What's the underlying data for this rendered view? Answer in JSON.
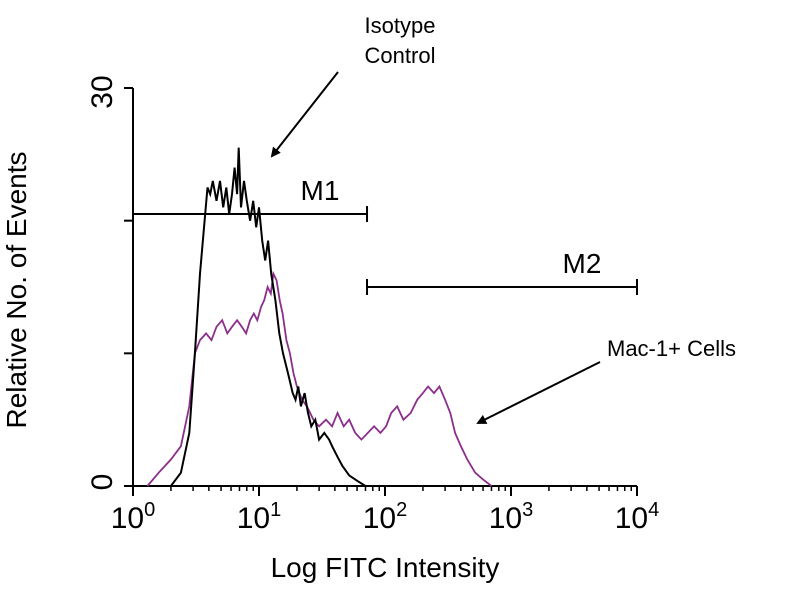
{
  "chart_data": {
    "type": "line",
    "title": "",
    "xlabel": "Log FITC Intensity",
    "ylabel": "Relative No. of Events",
    "x_scale": "log",
    "xlim": [
      1,
      10000
    ],
    "ylim": [
      0,
      30
    ],
    "grid": false,
    "x_tick_labels": [
      {
        "value": 1,
        "base": "10",
        "exp": "0"
      },
      {
        "value": 10,
        "base": "10",
        "exp": "1"
      },
      {
        "value": 100,
        "base": "10",
        "exp": "2"
      },
      {
        "value": 1000,
        "base": "10",
        "exp": "3"
      },
      {
        "value": 10000,
        "base": "10",
        "exp": "4"
      }
    ],
    "y_tick_labels": [
      {
        "value": 0,
        "label": "0"
      },
      {
        "value": 30,
        "label": "30"
      }
    ],
    "series": [
      {
        "name": "Isotype Control",
        "color": "#000000",
        "points": [
          [
            2.0,
            0
          ],
          [
            2.4,
            1
          ],
          [
            2.8,
            4
          ],
          [
            3.1,
            10
          ],
          [
            3.4,
            16
          ],
          [
            3.7,
            20
          ],
          [
            3.9,
            22.5
          ],
          [
            4.1,
            22
          ],
          [
            4.3,
            23
          ],
          [
            4.6,
            21.5
          ],
          [
            4.9,
            23
          ],
          [
            5.2,
            21
          ],
          [
            5.5,
            22.5
          ],
          [
            5.8,
            20.5
          ],
          [
            6.1,
            22
          ],
          [
            6.4,
            24
          ],
          [
            6.7,
            22
          ],
          [
            6.9,
            25.5
          ],
          [
            7.2,
            21
          ],
          [
            7.6,
            23
          ],
          [
            8.0,
            21.5
          ],
          [
            8.5,
            20
          ],
          [
            9.0,
            21.5
          ],
          [
            9.5,
            19.5
          ],
          [
            10.0,
            21
          ],
          [
            10.6,
            18.5
          ],
          [
            11.2,
            17
          ],
          [
            11.8,
            18.5
          ],
          [
            12.5,
            16
          ],
          [
            13.5,
            14
          ],
          [
            14.5,
            11.5
          ],
          [
            15.5,
            10
          ],
          [
            17,
            8.5
          ],
          [
            18.5,
            7
          ],
          [
            19.5,
            6.5
          ],
          [
            20.5,
            7.5
          ],
          [
            21.5,
            6
          ],
          [
            23,
            7
          ],
          [
            24.5,
            5.5
          ],
          [
            26,
            4.5
          ],
          [
            28,
            5
          ],
          [
            30,
            3.5
          ],
          [
            33,
            4
          ],
          [
            36,
            3.5
          ],
          [
            38,
            3
          ],
          [
            42,
            2.2
          ],
          [
            46,
            1.5
          ],
          [
            52,
            0.8
          ],
          [
            60,
            0.4
          ],
          [
            70,
            0
          ]
        ]
      },
      {
        "name": "Mac-1+ Cells",
        "color": "#8b2f8b",
        "points": [
          [
            1.3,
            0
          ],
          [
            1.6,
            1
          ],
          [
            2.0,
            2
          ],
          [
            2.4,
            3
          ],
          [
            2.8,
            6
          ],
          [
            3.1,
            10
          ],
          [
            3.4,
            11
          ],
          [
            3.8,
            11.5
          ],
          [
            4.2,
            11
          ],
          [
            4.6,
            12
          ],
          [
            5.1,
            12.5
          ],
          [
            5.6,
            11.5
          ],
          [
            6.1,
            12
          ],
          [
            6.7,
            12.5
          ],
          [
            7.3,
            12
          ],
          [
            7.9,
            11.5
          ],
          [
            8.5,
            12.5
          ],
          [
            9.1,
            13
          ],
          [
            9.7,
            12.5
          ],
          [
            10.4,
            13.5
          ],
          [
            11.0,
            14
          ],
          [
            11.7,
            15
          ],
          [
            12.4,
            14.5
          ],
          [
            13.0,
            16
          ],
          [
            13.8,
            15.5
          ],
          [
            14.6,
            14
          ],
          [
            15.4,
            13
          ],
          [
            16.5,
            11
          ],
          [
            17.6,
            10
          ],
          [
            18.8,
            8.5
          ],
          [
            20,
            7.5
          ],
          [
            22,
            6.5
          ],
          [
            24,
            6
          ],
          [
            27,
            5
          ],
          [
            30,
            4.5
          ],
          [
            34,
            5
          ],
          [
            38,
            4.5
          ],
          [
            42,
            5.5
          ],
          [
            47,
            4.5
          ],
          [
            52,
            5
          ],
          [
            58,
            4
          ],
          [
            65,
            3.5
          ],
          [
            73,
            4
          ],
          [
            82,
            4.5
          ],
          [
            92,
            4
          ],
          [
            102,
            4.5
          ],
          [
            112,
            5.5
          ],
          [
            125,
            6
          ],
          [
            140,
            5
          ],
          [
            160,
            5.5
          ],
          [
            180,
            6.5
          ],
          [
            200,
            7
          ],
          [
            220,
            7.5
          ],
          [
            245,
            7
          ],
          [
            270,
            7.5
          ],
          [
            300,
            6.5
          ],
          [
            330,
            5.5
          ],
          [
            360,
            4
          ],
          [
            400,
            3
          ],
          [
            450,
            2
          ],
          [
            520,
            1
          ],
          [
            600,
            0.5
          ],
          [
            700,
            0
          ]
        ]
      }
    ],
    "markers": [
      {
        "label": "M1",
        "from": 1,
        "to": 72,
        "y": 20.5
      },
      {
        "label": "M2",
        "from": 72,
        "to": 10000,
        "y": 15
      }
    ],
    "annotations": [
      {
        "lines": [
          "Isotype",
          "Control"
        ],
        "points_to": "Isotype Control"
      },
      {
        "lines": [
          "Mac-1+ Cells"
        ],
        "points_to": "Mac-1+ Cells"
      }
    ]
  }
}
